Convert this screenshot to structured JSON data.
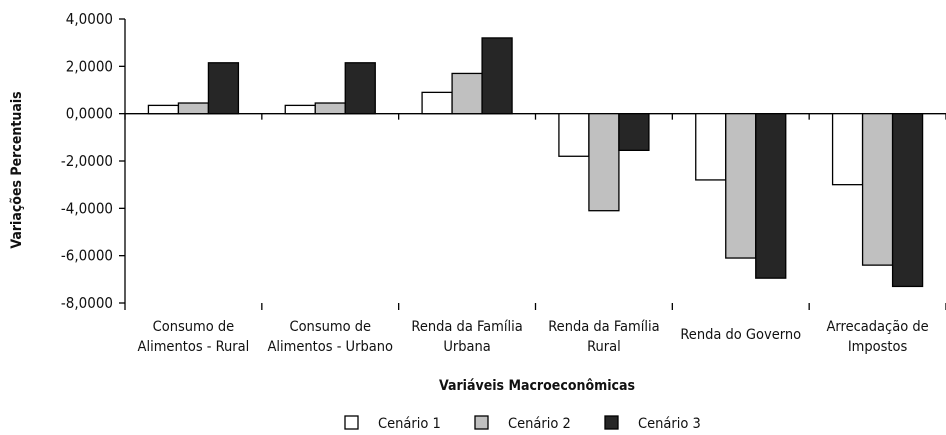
{
  "chart_data": {
    "type": "bar",
    "title": "",
    "ylabel": "Variações Percentuais",
    "xlabel": "Variáveis Macroeconômicas",
    "ylim": [
      -8,
      4
    ],
    "yticks": [
      4,
      2,
      0,
      -2,
      -4,
      -6,
      -8
    ],
    "ytick_labels": [
      "4,0000",
      "2,0000",
      "0,0000",
      "-2,0000",
      "-4,0000",
      "-6,0000",
      "-8,0000"
    ],
    "categories": [
      [
        "Consumo de",
        "Alimentos - Rural"
      ],
      [
        "Consumo de",
        "Alimentos - Urbano"
      ],
      [
        "Renda da Família",
        "Urbana"
      ],
      [
        "Renda da Família",
        "Rural"
      ],
      [
        "Renda do Governo"
      ],
      [
        "Arrecadação de",
        "Impostos"
      ]
    ],
    "series": [
      {
        "name": "Cenário 1",
        "color": "#ffffff",
        "values": [
          0.35,
          0.35,
          0.9,
          -1.8,
          -2.8,
          -3.0
        ]
      },
      {
        "name": "Cenário 2",
        "color": "#c0c0c0",
        "values": [
          0.45,
          0.45,
          1.7,
          -4.1,
          -6.1,
          -6.4
        ]
      },
      {
        "name": "Cenário 3",
        "color": "#262626",
        "values": [
          2.15,
          2.15,
          3.2,
          -1.55,
          -6.95,
          -7.3
        ]
      }
    ],
    "grid": false,
    "legend_position": "bottom"
  }
}
